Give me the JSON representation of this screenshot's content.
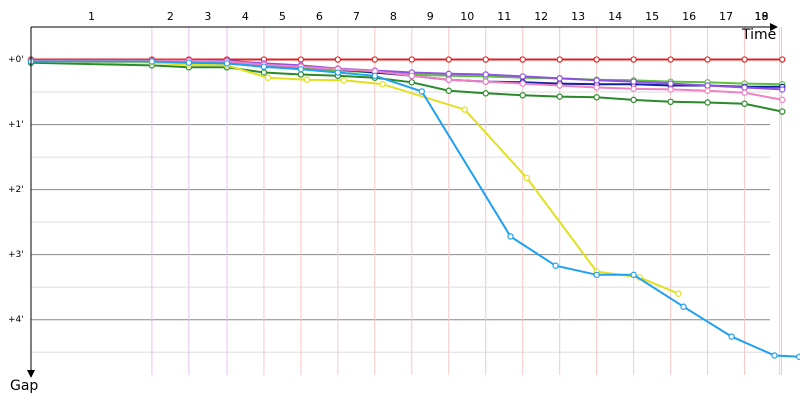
{
  "chart_data": {
    "type": "line",
    "x_label": "Time",
    "y_label": "Gap",
    "xlim": [
      0,
      20.8
    ],
    "ylim": [
      -0.5,
      4.85
    ],
    "y_inverted": true,
    "grid": true,
    "xticks": [
      {
        "value": 3.27,
        "label": "1"
      },
      {
        "value": 4.27,
        "label": "2"
      },
      {
        "value": 5.3,
        "label": "3"
      },
      {
        "value": 6.3,
        "label": "4"
      },
      {
        "value": 7.3,
        "label": "5"
      },
      {
        "value": 8.3,
        "label": "6"
      },
      {
        "value": 9.3,
        "label": "7"
      },
      {
        "value": 10.3,
        "label": "8"
      },
      {
        "value": 11.3,
        "label": "9"
      },
      {
        "value": 12.3,
        "label": "10"
      },
      {
        "value": 13.3,
        "label": "11"
      },
      {
        "value": 14.3,
        "label": "12"
      },
      {
        "value": 15.3,
        "label": "13"
      },
      {
        "value": 16.3,
        "label": "14"
      },
      {
        "value": 17.3,
        "label": "15"
      },
      {
        "value": 18.3,
        "label": "16"
      },
      {
        "value": 19.3,
        "label": "17"
      },
      {
        "value": 20.25,
        "label": "18"
      },
      {
        "value": 20.3,
        "label": "19"
      }
    ],
    "yticks": [
      {
        "value": 0,
        "label": "+0'"
      },
      {
        "value": 1,
        "label": "+1'"
      },
      {
        "value": 2,
        "label": "+2'"
      },
      {
        "value": 3,
        "label": "+3'"
      },
      {
        "value": 4,
        "label": "+4'"
      }
    ],
    "series": [
      {
        "color": "#e02020",
        "x": [
          0,
          3.27,
          4.27,
          5.3,
          6.3,
          7.3,
          8.3,
          9.3,
          10.3,
          11.3,
          12.3,
          13.3,
          14.3,
          15.3,
          16.3,
          17.3,
          18.3,
          19.3,
          20.32
        ],
        "values": [
          0,
          0,
          0,
          0,
          0,
          0,
          0,
          0,
          0,
          0,
          0,
          0,
          0,
          0,
          0,
          0,
          0,
          0,
          0
        ]
      },
      {
        "color": "#5cc040",
        "x": [
          0,
          3.27,
          4.27,
          5.3,
          6.3,
          7.3,
          8.3,
          9.3,
          10.3,
          11.3,
          12.3,
          13.3,
          14.3,
          15.3,
          16.3,
          17.3,
          18.3,
          19.3,
          20.32
        ],
        "values": [
          0.03,
          0.03,
          0.05,
          0.06,
          0.11,
          0.14,
          0.17,
          0.2,
          0.23,
          0.25,
          0.26,
          0.28,
          0.29,
          0.31,
          0.32,
          0.34,
          0.35,
          0.37,
          0.38
        ]
      },
      {
        "color": "#1020a0",
        "x": [
          0,
          3.27,
          4.27,
          5.3,
          6.3,
          7.3,
          8.3,
          9.3,
          10.3,
          11.3,
          12.3,
          13.3,
          14.3,
          15.3,
          16.3,
          17.3,
          18.3,
          19.3,
          20.32
        ],
        "values": [
          0.02,
          0.02,
          0.02,
          0.03,
          0.08,
          0.11,
          0.15,
          0.2,
          0.25,
          0.31,
          0.34,
          0.35,
          0.37,
          0.38,
          0.38,
          0.4,
          0.4,
          0.42,
          0.42
        ]
      },
      {
        "color": "#9050e0",
        "x": [
          0,
          3.27,
          4.27,
          5.3,
          6.3,
          7.3,
          8.3,
          9.3,
          10.3,
          11.3,
          12.3,
          13.3,
          14.3,
          15.3,
          16.3,
          17.3,
          18.3,
          19.3,
          20.32
        ],
        "values": [
          0.02,
          0.02,
          0.02,
          0.02,
          0.06,
          0.09,
          0.14,
          0.17,
          0.2,
          0.22,
          0.23,
          0.26,
          0.29,
          0.32,
          0.34,
          0.37,
          0.4,
          0.43,
          0.46
        ]
      },
      {
        "color": "#f080c0",
        "x": [
          0,
          3.27,
          4.27,
          5.3,
          6.3,
          7.3,
          8.3,
          9.3,
          10.3,
          11.3,
          12.3,
          13.3,
          14.3,
          15.3,
          16.3,
          17.3,
          18.3,
          19.3,
          20.32
        ],
        "values": [
          0.02,
          0.02,
          0.02,
          0.03,
          0.08,
          0.11,
          0.15,
          0.18,
          0.25,
          0.31,
          0.34,
          0.37,
          0.4,
          0.43,
          0.45,
          0.46,
          0.48,
          0.51,
          0.62
        ]
      },
      {
        "color": "#2a8a2a",
        "x": [
          0,
          3.27,
          4.27,
          5.3,
          6.3,
          7.3,
          8.3,
          9.3,
          10.3,
          11.3,
          12.3,
          13.3,
          14.3,
          15.3,
          16.3,
          17.3,
          18.3,
          19.3,
          20.32
        ],
        "values": [
          0.05,
          0.09,
          0.12,
          0.12,
          0.2,
          0.23,
          0.25,
          0.28,
          0.35,
          0.48,
          0.52,
          0.55,
          0.57,
          0.58,
          0.62,
          0.65,
          0.66,
          0.68,
          0.8
        ]
      },
      {
        "color": "#e0e020",
        "x": [
          0,
          3.27,
          4.27,
          5.3,
          6.41,
          7.46,
          8.46,
          9.51,
          11.73,
          13.41,
          15.3,
          16.46,
          17.51
        ],
        "values": [
          0.03,
          0.05,
          0.08,
          0.09,
          0.28,
          0.31,
          0.32,
          0.38,
          0.77,
          1.82,
          3.26,
          3.35,
          3.6
        ]
      },
      {
        "color": "#20a0f0",
        "x": [
          0,
          3.27,
          4.27,
          5.3,
          6.3,
          7.3,
          8.3,
          9.3,
          10.57,
          12.97,
          14.19,
          15.3,
          16.3,
          17.65,
          18.95,
          20.11,
          20.78
        ],
        "values": [
          0.03,
          0.03,
          0.05,
          0.06,
          0.11,
          0.15,
          0.2,
          0.25,
          0.49,
          2.72,
          3.17,
          3.31,
          3.31,
          3.8,
          4.26,
          4.55,
          4.57
        ]
      }
    ]
  }
}
